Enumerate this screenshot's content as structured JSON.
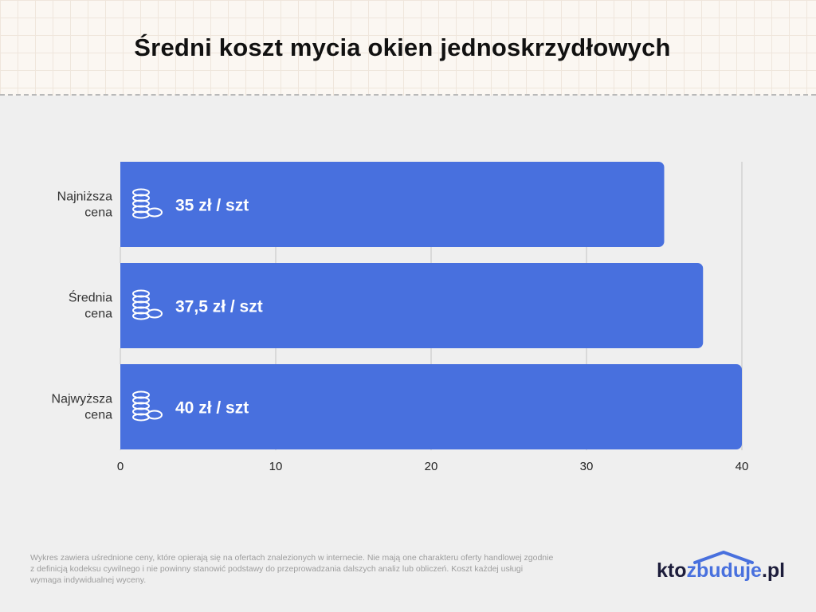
{
  "title": "Średni koszt mycia okien jednoskrzydłowych",
  "chart_data": {
    "type": "bar",
    "orientation": "horizontal",
    "title": "Średni koszt mycia okien jednoskrzydłowych",
    "categories": [
      [
        "Najniższa",
        "cena"
      ],
      [
        "Średnia",
        "cena"
      ],
      [
        "Najwyższa",
        "cena"
      ]
    ],
    "values": [
      35,
      37.5,
      40
    ],
    "value_labels": [
      "35 zł / szt",
      "37,5 zł / szt",
      "40 zł / szt"
    ],
    "xlim": [
      0,
      40
    ],
    "xticks": [
      0,
      10,
      20,
      30,
      40
    ],
    "xlabel": "",
    "ylabel": "",
    "grid": true,
    "bar_color": "#4870de",
    "bar_icon": "coins-icon"
  },
  "footnote": "Wykres zawiera uśrednione ceny, które opierają się na ofertach znalezionych w internecie. Nie mają one charakteru oferty handlowej zgodnie z definicją kodeksu cywilnego i nie powinny stanowić podstawy do przeprowadzania dalszych analiz lub obliczeń. Koszt każdej usługi wymaga indywidualnej wyceny.",
  "logo": {
    "part1": "kto",
    "part2": "zbuduje",
    "part3": ".pl",
    "accent_color": "#4870de",
    "dark_color": "#1d1d3b",
    "icon": "house-roof-icon"
  }
}
